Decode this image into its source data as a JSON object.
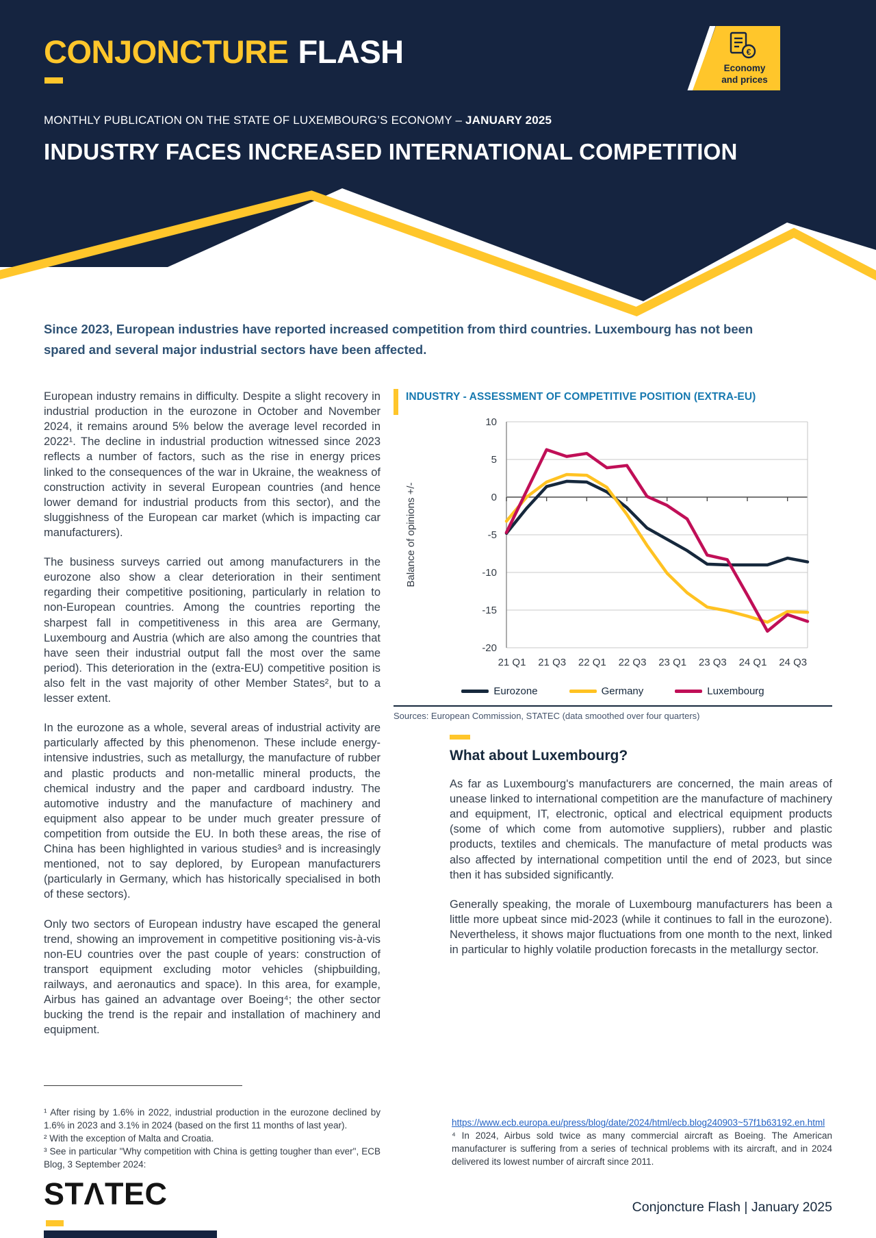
{
  "colors": {
    "navy": "#152440",
    "yellow": "#FFC62B",
    "chart_title_blue": "#1779B0",
    "link_blue": "#2563C4",
    "body_text": "#343E4B",
    "intro_text": "#2F5274"
  },
  "icons": {
    "badge_icon": "receipt-euro"
  },
  "header": {
    "logo_part1": "CONJONCTURE",
    "logo_part2": "FLASH",
    "badge_line1": "Economy",
    "badge_line2": "and prices",
    "subtitle_prefix": "MONTHLY PUBLICATION ON THE STATE OF LUXEMBOURG’S ECONOMY – ",
    "subtitle_bold": "JANUARY 2025",
    "title": "INDUSTRY FACES INCREASED INTERNATIONAL COMPETITION"
  },
  "intro": "Since 2023, European industries have reported increased competition from third countries. Luxembourg has not been spared and several major industrial sectors have been affected.",
  "left_column": {
    "paragraphs": [
      "European industry remains in difficulty. Despite a slight recovery in industrial production in the eurozone in October and November 2024, it remains around 5% below the average level recorded in 2022¹. The decline in industrial production witnessed since 2023 reflects a number of factors, such as the rise in energy prices linked to the consequences of the war in Ukraine, the weakness of construction activity in several European countries (and hence lower demand for industrial products from this sector), and the sluggishness of the European car market (which is impacting car manufacturers).",
      "The business surveys carried out among manufacturers in the eurozone also show a clear deterioration in their sentiment regarding their competitive positioning, particularly in relation to non-European countries. Among the countries reporting the sharpest fall in competitiveness in this area are Germany, Luxembourg and Austria (which are also among the countries that have seen their industrial output fall the most over the same period). This deterioration in the (extra-EU) competitive position is also felt in the vast majority of other Member States², but to a lesser extent.",
      "In the eurozone as a whole, several areas of industrial activity are particularly affected by this phenomenon. These include energy-intensive industries, such as metallurgy, the manufacture of rubber and plastic products and non-metallic mineral products, the chemical industry and the paper and cardboard industry. The automotive industry and the manufacture of machinery and equipment also appear to be under much greater pressure of competition from outside the EU. In both these areas, the rise of China has been highlighted in various studies³ and is increasingly mentioned, not to say deplored, by European manufacturers (particularly in Germany, which has historically specialised in both of these sectors).",
      "Only two sectors of European industry have escaped the general trend, showing an improvement in competitive positioning vis-à-vis non-EU countries over the past couple of years: construction of transport equipment excluding motor vehicles (shipbuilding, railways, and aeronautics and space). In this area, for example, Airbus has gained an advantage over Boeing⁴; the other sector bucking the trend is the repair and installation of machinery and equipment."
    ]
  },
  "chart_data": {
    "type": "line",
    "title": "INDUSTRY - ASSESSMENT OF COMPETITIVE POSITION (EXTRA-EU)",
    "ylabel": "Balance of opinions +/-",
    "xlabel": "",
    "ylim": [
      -20,
      10
    ],
    "y_ticks": [
      10,
      5,
      0,
      -5,
      -10,
      -15,
      -20
    ],
    "grid": true,
    "legend_position": "bottom",
    "categories": [
      "21 Q1",
      "21 Q2",
      "21 Q3",
      "21 Q4",
      "22 Q1",
      "22 Q2",
      "22 Q3",
      "22 Q4",
      "23 Q1",
      "23 Q2",
      "23 Q3",
      "23 Q4",
      "24 Q1",
      "24 Q2",
      "24 Q3",
      "24 Q4"
    ],
    "x_tick_indices": [
      0,
      2,
      4,
      6,
      8,
      10,
      12,
      14
    ],
    "x_tick_labels": [
      "21 Q1",
      "21 Q3",
      "22 Q1",
      "22 Q3",
      "23 Q1",
      "23 Q3",
      "24 Q1",
      "24 Q3"
    ],
    "series": [
      {
        "name": "Eurozone",
        "color": "#16283C",
        "values": [
          -4.8,
          -1.5,
          1.4,
          2.1,
          2.0,
          0.7,
          -1.4,
          -4.1,
          -5.6,
          -7.1,
          -8.9,
          -9.0,
          -9.0,
          -9.0,
          -8.1,
          -8.6
        ]
      },
      {
        "name": "Germany",
        "color": "#FFC222",
        "values": [
          -3.2,
          0.0,
          2.0,
          3.0,
          2.9,
          1.3,
          -2.3,
          -6.4,
          -10.1,
          -12.7,
          -14.6,
          -15.1,
          -15.8,
          -16.6,
          -15.2,
          -15.3
        ]
      },
      {
        "name": "Luxembourg",
        "color": "#C00F57",
        "values": [
          -4.7,
          0.8,
          6.3,
          5.4,
          5.8,
          3.9,
          4.2,
          0.1,
          -1.1,
          -2.9,
          -7.7,
          -8.3,
          -13.0,
          -17.8,
          -15.6,
          -16.5
        ]
      }
    ],
    "source_note": "Sources: European Commission, STATEC (data smoothed over four quarters)"
  },
  "what_about": {
    "heading": "What about Luxembourg?",
    "paragraphs": [
      "As far as Luxembourg's manufacturers are concerned, the main areas of unease linked to international competition are the manufacture of machinery and equipment, IT, electronic, optical and electrical equipment products (some of which come from automotive suppliers), rubber and plastic products, textiles and chemicals. The manufacture of metal products was also affected by international competition until the end of 2023, but since then it has subsided significantly.",
      "Generally speaking, the morale of Luxembourg manufacturers has been a little more upbeat since mid-2023 (while it continues to fall in the eurozone). Nevertheless, it shows major fluctuations from one month to the next, linked in particular to highly volatile production forecasts in the metallurgy sector."
    ]
  },
  "footnotes": {
    "fn1": "¹ After rising by 1.6% in 2022, industrial production in the eurozone declined by 1.6% in 2023 and 3.1% in 2024 (based on the first 11 months of last year).",
    "fn2": "² With the exception of Malta and Croatia.",
    "fn3": "³ See in particular \"Why competition with China is getting tougher than ever\", ECB Blog, 3 September 2024:",
    "fn3_link": "https://www.ecb.europa.eu/press/blog/date/2024/html/ecb.blog240903~57f1b63192.en.html",
    "fn4": "⁴ In 2024, Airbus sold twice as many commercial aircraft as Boeing. The American manufacturer is suffering from a series of technical problems with its aircraft, and in 2024 delivered its lowest number of aircraft since 2011."
  },
  "footer": {
    "brand": "STΛTEC",
    "date_line": "Conjoncture Flash | January 2025"
  }
}
